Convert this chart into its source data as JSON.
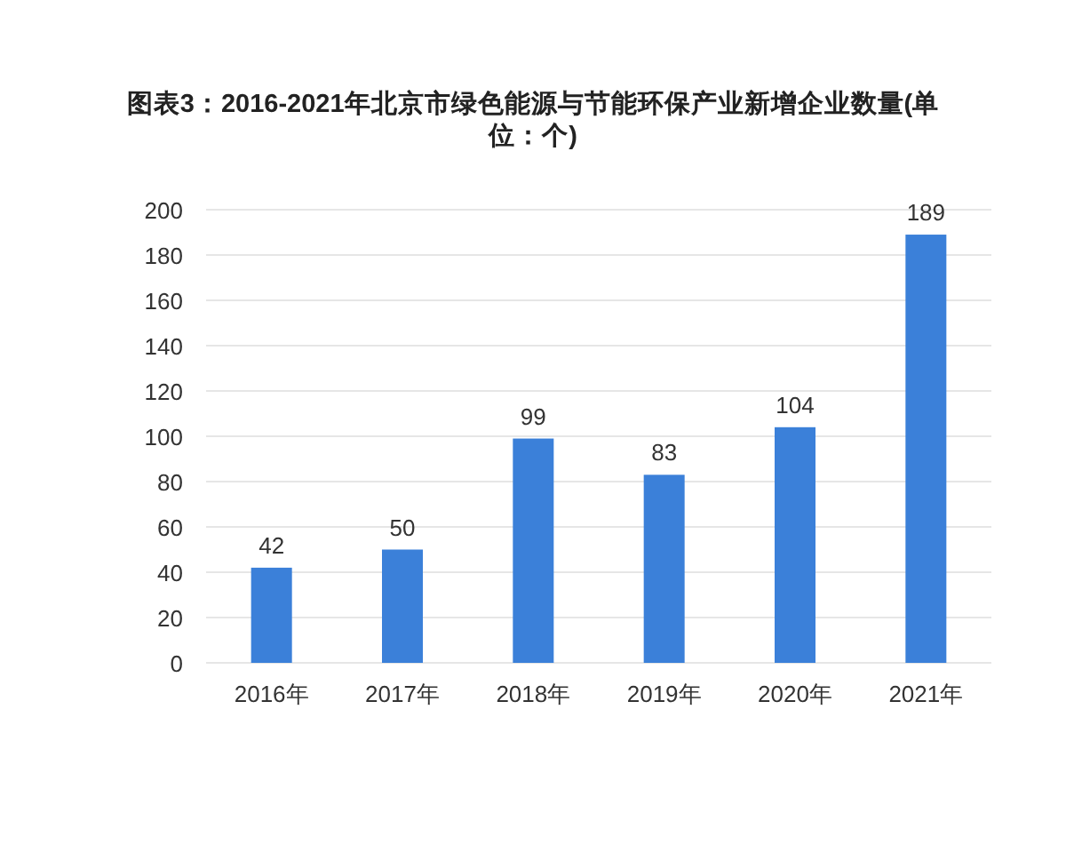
{
  "chart_data": {
    "type": "bar",
    "title": "图表3：2016-2021年北京市绿色能源与节能环保产业新增企业数量(单位：个)",
    "categories": [
      "2016年",
      "2017年",
      "2018年",
      "2019年",
      "2020年",
      "2021年"
    ],
    "values": [
      42,
      50,
      99,
      83,
      104,
      189
    ],
    "color": "#3b80d9",
    "ylim": [
      0,
      200
    ],
    "yticks": [
      0,
      20,
      40,
      60,
      80,
      100,
      120,
      140,
      160,
      180,
      200
    ],
    "grid": "y",
    "data_labels": true
  }
}
